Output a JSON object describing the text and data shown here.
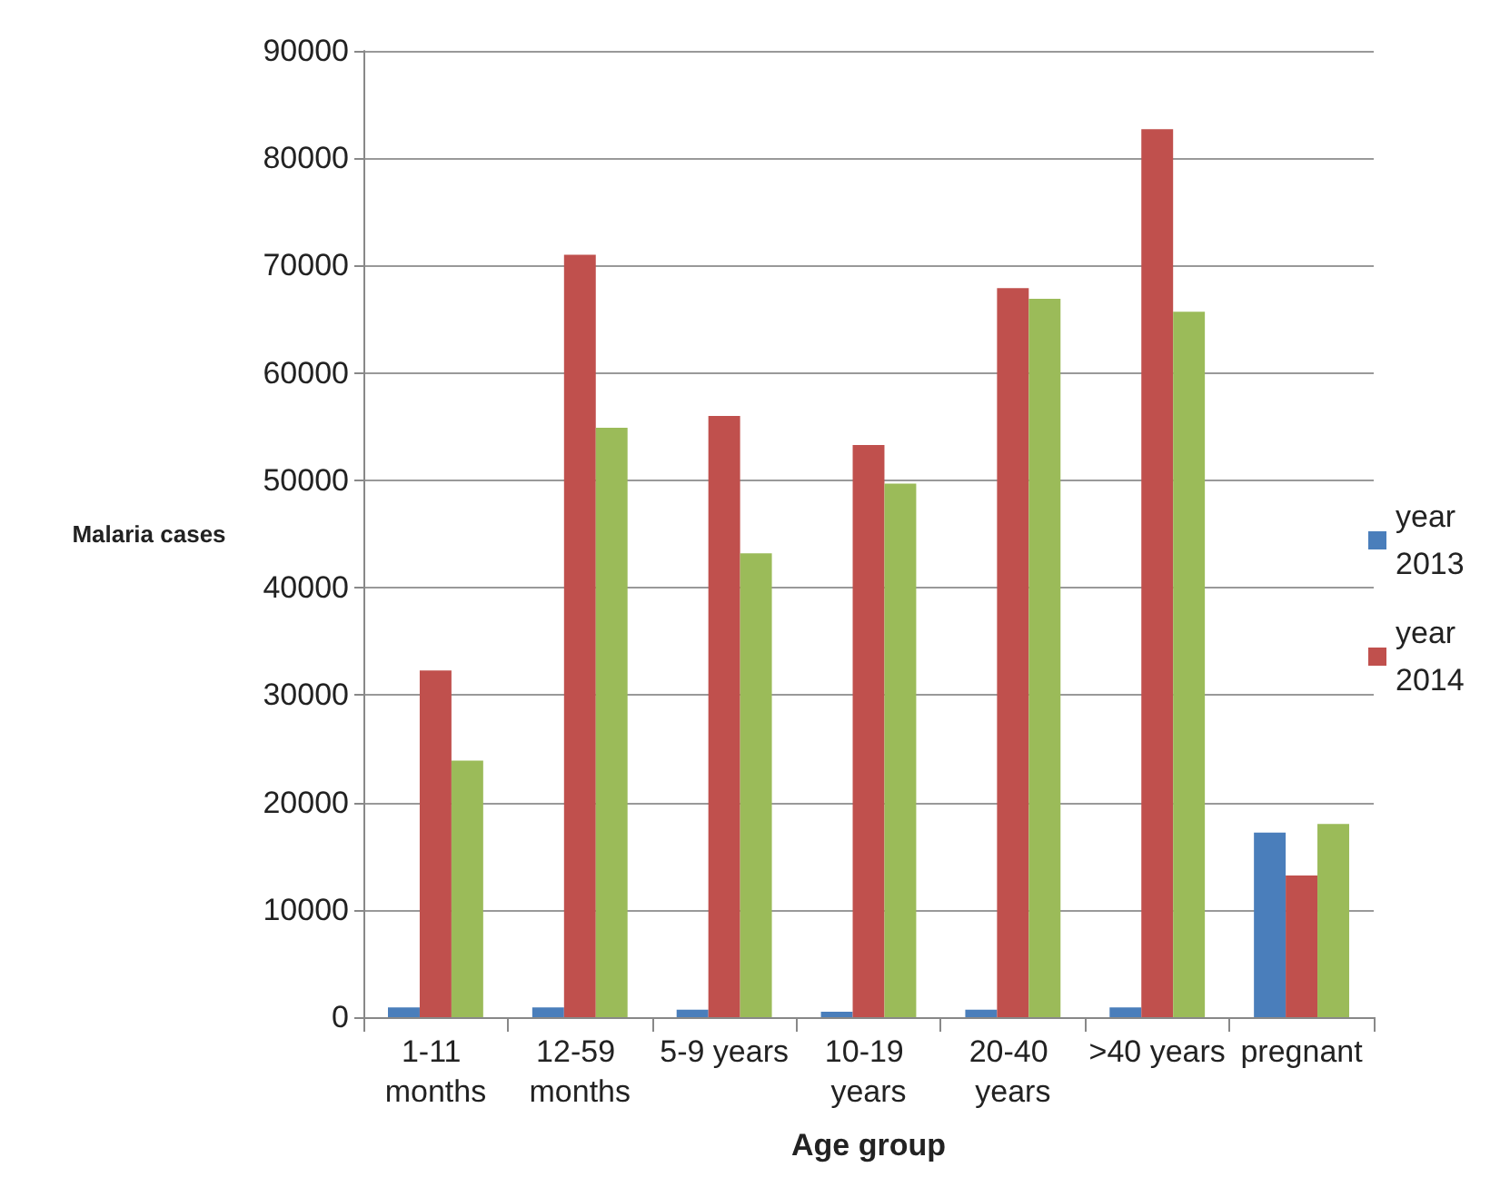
{
  "chart_data": {
    "type": "bar",
    "xlabel": "Age group",
    "ylabel": "Malaria cases",
    "categories": [
      "1-11 months",
      "12-59 months",
      "5-9 years",
      "10-19 years",
      "20-40 years",
      ">40 years",
      "pregnant"
    ],
    "series": [
      {
        "name": "year 2013",
        "color": "#4a7ebb",
        "values": [
          900,
          900,
          700,
          500,
          700,
          900,
          17200
        ]
      },
      {
        "name": "year 2014",
        "color": "#c0504d",
        "values": [
          32300,
          71000,
          56000,
          53300,
          67900,
          82700,
          13200
        ]
      },
      {
        "color": "#9bbb59",
        "values": [
          23900,
          54900,
          43200,
          49700,
          66900,
          65700,
          18000
        ]
      }
    ],
    "ylim": [
      0,
      90000
    ],
    "yticks": [
      0,
      10000,
      20000,
      30000,
      40000,
      50000,
      60000,
      70000,
      80000,
      90000
    ],
    "grid": "y",
    "legend": "right"
  }
}
